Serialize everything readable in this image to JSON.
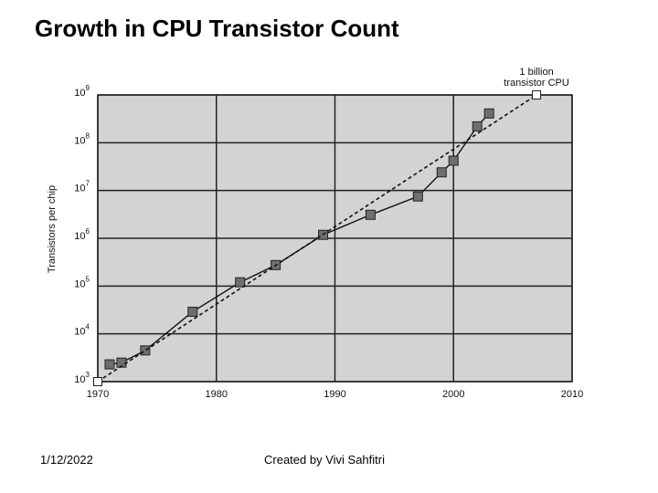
{
  "slide": {
    "title": "Growth in CPU Transistor Count",
    "footer_date": "1/12/2022",
    "footer_credit": "Created by Vivi Sahfitri"
  },
  "chart_data": {
    "type": "line",
    "title": "Growth in CPU Transistor Count",
    "xlabel": "",
    "ylabel": "Transistors per chip",
    "xlim": [
      1970,
      2010
    ],
    "ylim_log10": [
      3,
      9
    ],
    "y_scale": "log",
    "x_ticks": [
      "1970",
      "1980",
      "1990",
      "2000",
      "2010"
    ],
    "y_ticks": [
      {
        "base": "10",
        "exp": "3"
      },
      {
        "base": "10",
        "exp": "4"
      },
      {
        "base": "10",
        "exp": "5"
      },
      {
        "base": "10",
        "exp": "6"
      },
      {
        "base": "10",
        "exp": "7"
      },
      {
        "base": "10",
        "exp": "8"
      },
      {
        "base": "10",
        "exp": "9"
      }
    ],
    "grid": true,
    "plot_background": "#d3d3d3",
    "series": [
      {
        "style": "solid",
        "marker": "square",
        "marker_color": "#6e6e6e",
        "points": [
          [
            1971,
            2300
          ],
          [
            1972,
            2500
          ],
          [
            1974,
            4500
          ],
          [
            1978,
            29000
          ],
          [
            1982,
            120000
          ],
          [
            1985,
            275000
          ],
          [
            1989,
            1180000
          ],
          [
            1993,
            3100000
          ],
          [
            1997,
            7500000
          ],
          [
            1999,
            24000000
          ],
          [
            2000,
            42000000
          ],
          [
            2002,
            220000000
          ],
          [
            2003,
            410000000
          ]
        ]
      },
      {
        "style": "dashed",
        "marker": "square-open",
        "marker_color": "#ffffff",
        "points": [
          [
            1970,
            1000
          ],
          [
            2007,
            1000000000
          ]
        ]
      }
    ],
    "annotation": {
      "lines": [
        "1 billion",
        "transistor CPU"
      ],
      "x": 2007,
      "y": 1000000000
    }
  }
}
